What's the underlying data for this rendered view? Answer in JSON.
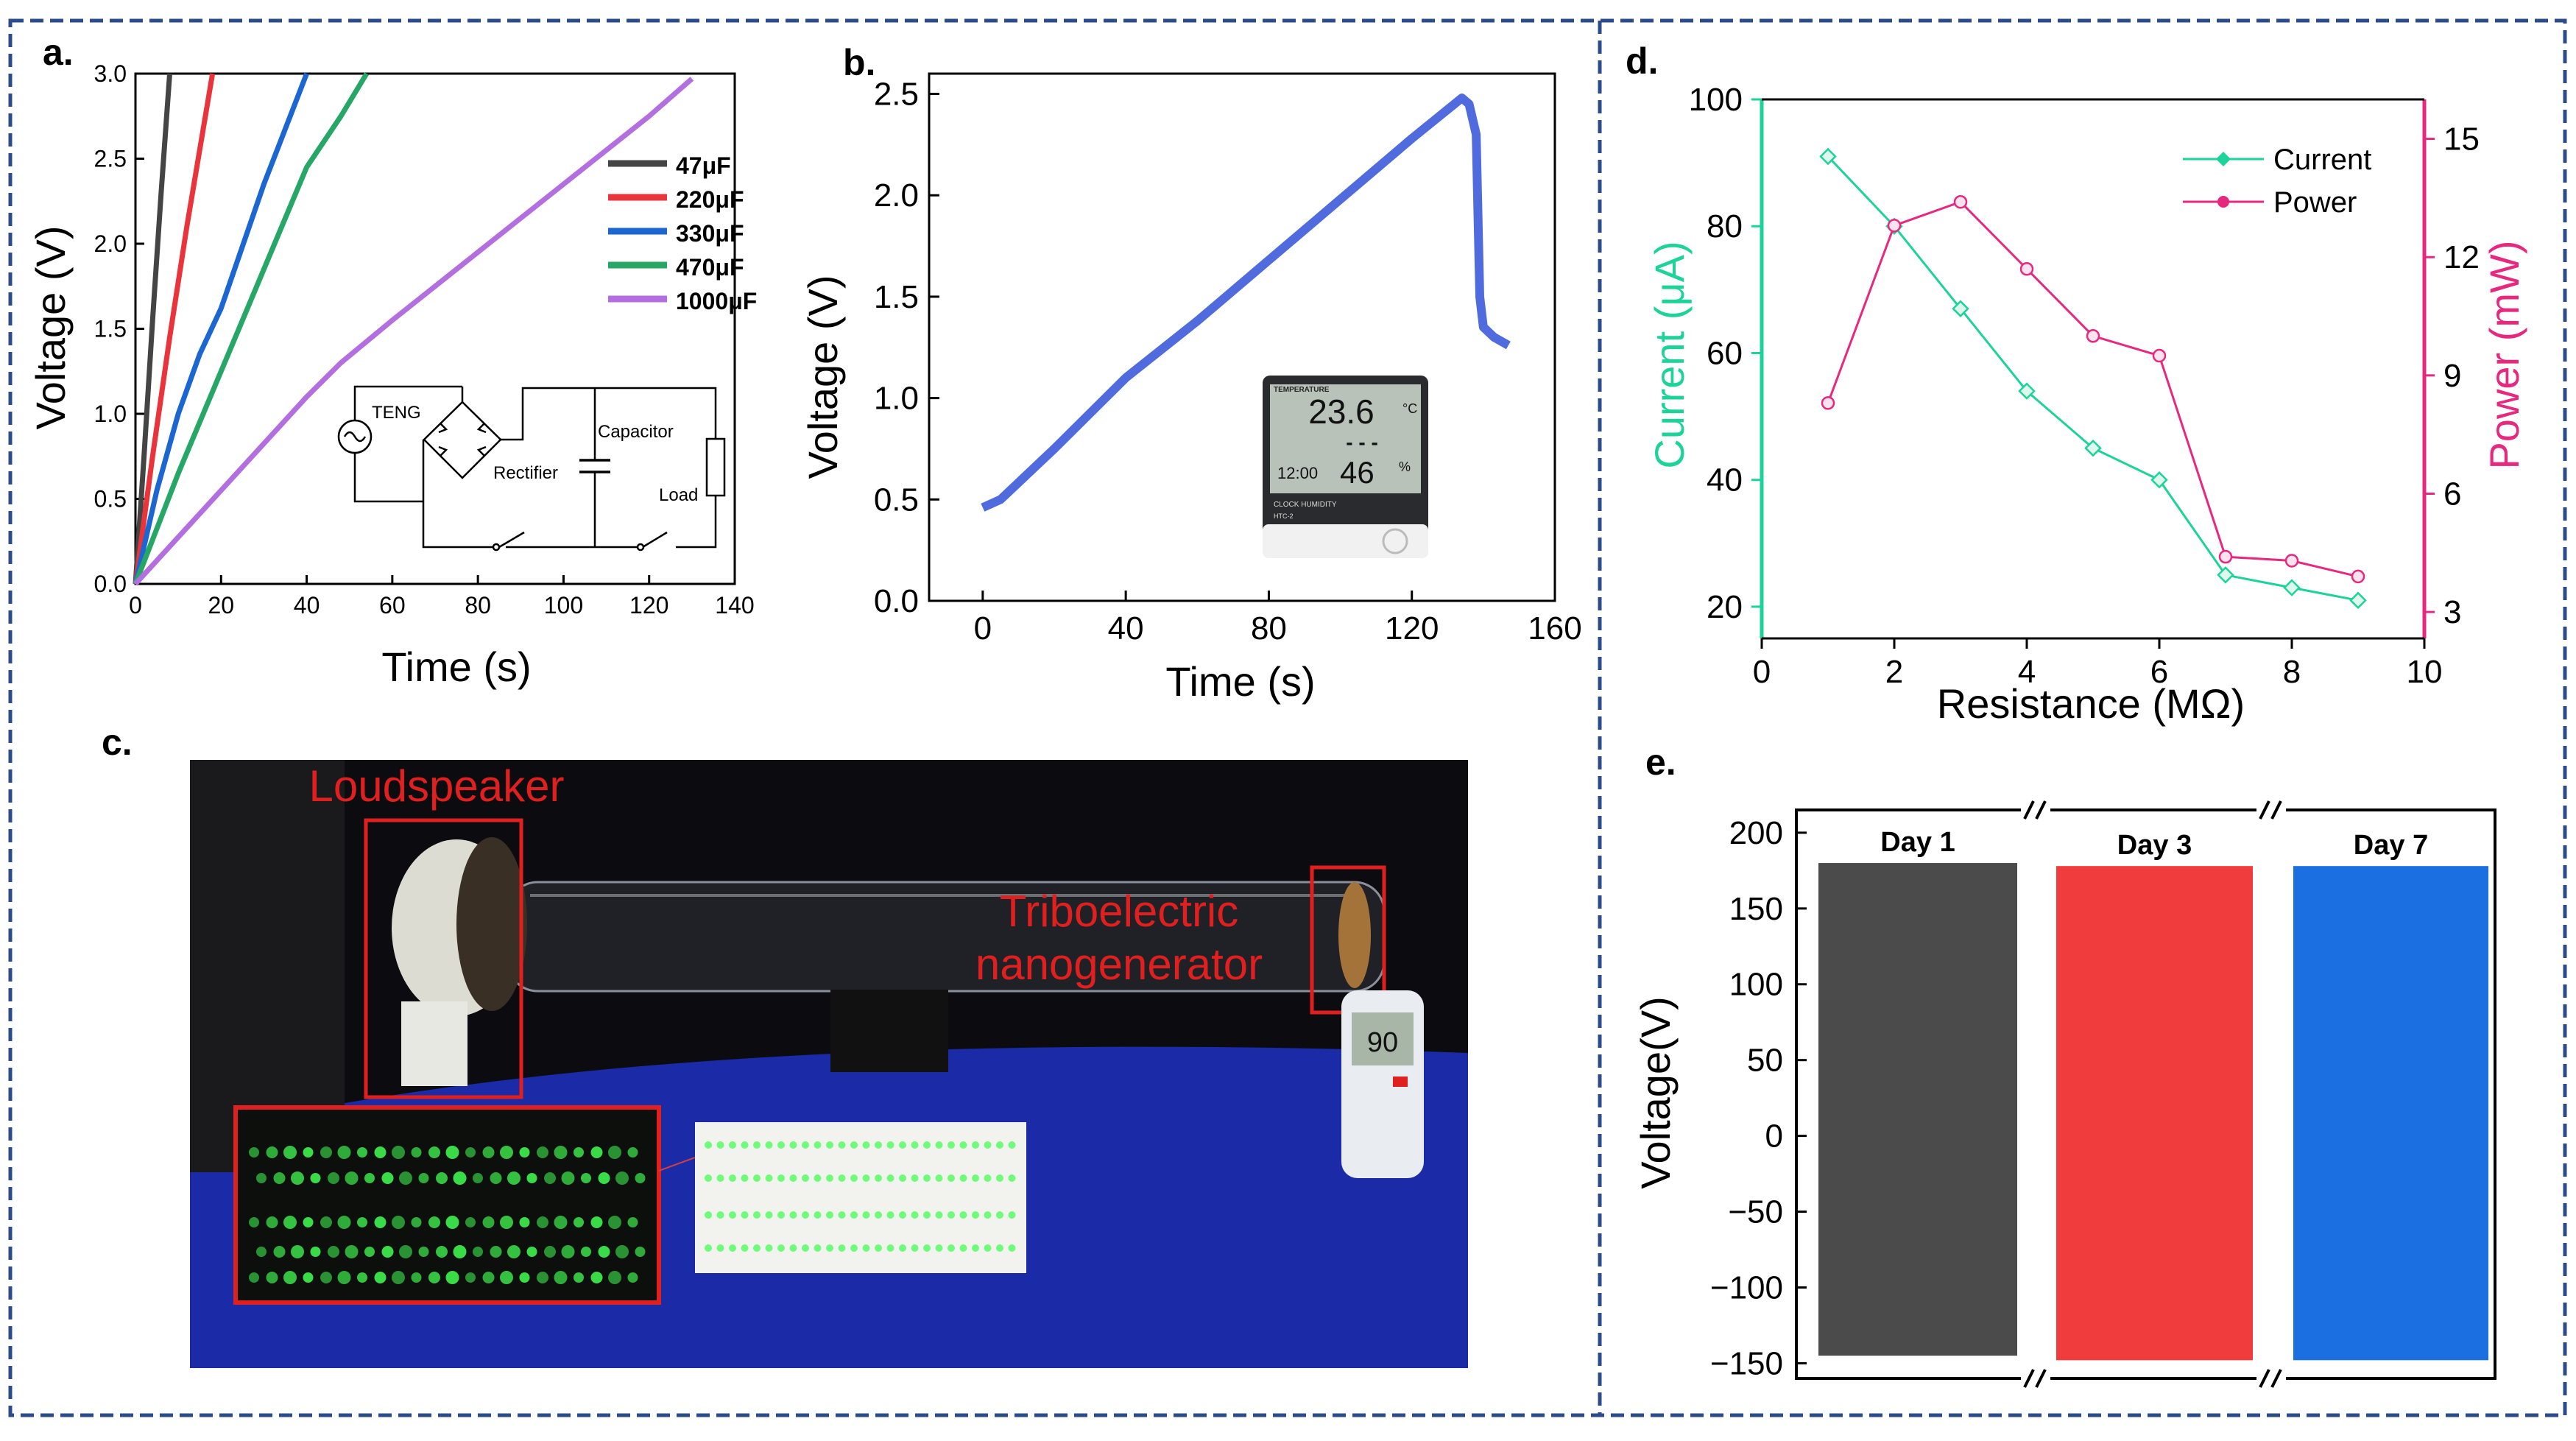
{
  "panels": {
    "a": {
      "label": "a.",
      "chart_data": {
        "type": "line",
        "xlabel": "Time (s)",
        "ylabel": "Voltage (V)",
        "xlim": [
          0,
          140
        ],
        "ylim": [
          0,
          3.0
        ],
        "xticks": [
          "0",
          "20",
          "40",
          "60",
          "80",
          "100",
          "120",
          "140"
        ],
        "yticks": [
          "0.0",
          "0.5",
          "1.0",
          "1.5",
          "2.0",
          "2.5",
          "3.0"
        ],
        "series": [
          {
            "name": "47μF",
            "color": "#444444",
            "x": [
              0,
              2,
              4,
              6,
              8
            ],
            "y": [
              0,
              0.75,
              1.55,
              2.3,
              3.0
            ]
          },
          {
            "name": "220μF",
            "color": "#e8343a",
            "x": [
              0,
              4,
              8,
              12,
              18
            ],
            "y": [
              0,
              0.75,
              1.45,
              2.1,
              3.0
            ]
          },
          {
            "name": "330μF",
            "color": "#1b66d1",
            "x": [
              0,
              5,
              10,
              15,
              20,
              30,
              40
            ],
            "y": [
              0,
              0.55,
              1.0,
              1.35,
              1.62,
              2.35,
              3.0
            ]
          },
          {
            "name": "470μF",
            "color": "#26a766",
            "x": [
              0,
              10,
              20,
              30,
              40,
              48,
              54
            ],
            "y": [
              0,
              0.65,
              1.25,
              1.85,
              2.45,
              2.75,
              3.0
            ]
          },
          {
            "name": "1000μF",
            "color": "#b36ee0",
            "x": [
              0,
              20,
              40,
              48,
              60,
              80,
              100,
              120,
              130
            ],
            "y": [
              0,
              0.55,
              1.1,
              1.3,
              1.55,
              1.95,
              2.35,
              2.75,
              2.97
            ]
          }
        ]
      },
      "circuit": {
        "teng": "TENG",
        "rectifier": "Rectifier",
        "capacitor": "Capacitor",
        "load": "Load"
      }
    },
    "b": {
      "label": "b.",
      "chart_data": {
        "type": "line",
        "xlabel": "Time (s)",
        "ylabel": "Voltage (V)",
        "xlim": [
          -15,
          160
        ],
        "ylim": [
          0,
          2.6
        ],
        "xticks": [
          "0",
          "40",
          "80",
          "120",
          "160"
        ],
        "yticks": [
          "0.0",
          "0.5",
          "1.0",
          "1.5",
          "2.0",
          "2.5"
        ],
        "series": [
          {
            "name": "Voltage",
            "color": "#3d5bd9",
            "x": [
              0,
              5,
              20,
              40,
              60,
              80,
              100,
              120,
              134,
              136,
              138,
              139,
              140,
              143,
              147
            ],
            "y": [
              0.46,
              0.5,
              0.75,
              1.1,
              1.38,
              1.68,
              1.98,
              2.28,
              2.48,
              2.45,
              2.3,
              1.5,
              1.35,
              1.3,
              1.26
            ]
          }
        ]
      },
      "thermometer": {
        "header": "TEMPERATURE",
        "temp": "23.6",
        "unit": "°C",
        "dashes": "- - -",
        "time": "12:00",
        "humidity": "46",
        "pct": "%",
        "footer": "CLOCK  HUMIDITY",
        "model": "HTC-2"
      }
    },
    "c": {
      "label": "c.",
      "loudspeaker": "Loudspeaker",
      "teng_line1": "Triboelectric",
      "teng_line2": "nanogenerator",
      "meter_reading": "90",
      "colors": {
        "box": "#e01f1f",
        "backdrop": "#0c0c10",
        "cloth": "#1b2aa6",
        "led": "#42ff52"
      }
    },
    "d": {
      "label": "d.",
      "chart_data": {
        "type": "line",
        "xlabel": "Resistance (MΩ)",
        "ylabel_left": "Current (μA)",
        "ylabel_right": "Power (mW)",
        "xlim": [
          0,
          10
        ],
        "ylim_left": [
          15,
          100
        ],
        "ylim_right": [
          2.33,
          16
        ],
        "xticks": [
          "0",
          "2",
          "4",
          "6",
          "8",
          "10"
        ],
        "yticks_left": [
          "20",
          "40",
          "60",
          "80",
          "100"
        ],
        "yticks_right": [
          "3",
          "6",
          "9",
          "12",
          "15"
        ],
        "series": [
          {
            "name": "Current",
            "axis": "left",
            "color": "#1ed39a",
            "x": [
              1,
              2,
              3,
              4,
              5,
              6,
              7,
              8,
              9
            ],
            "y": [
              91,
              80,
              67,
              54,
              45,
              40,
              25,
              23,
              21
            ]
          },
          {
            "name": "Power",
            "axis": "right",
            "color": "#e6287f",
            "x": [
              1,
              2,
              3,
              4,
              5,
              6,
              7,
              8,
              9
            ],
            "y": [
              8.3,
              12.8,
              13.4,
              11.7,
              10.0,
              9.5,
              4.4,
              4.3,
              3.9
            ]
          }
        ]
      }
    },
    "e": {
      "label": "e.",
      "chart_data": {
        "type": "area",
        "ylabel": "Voltage(V)",
        "ylim": [
          -160,
          215
        ],
        "yticks": [
          "200",
          "150",
          "100",
          "50",
          "0",
          "−50",
          "−100",
          "−150"
        ],
        "series": [
          {
            "name": "Day 1",
            "color": "#4b4b4b",
            "max": 180,
            "min": -145
          },
          {
            "name": "Day 3",
            "color": "#f03c3c",
            "max": 178,
            "min": -148
          },
          {
            "name": "Day 7",
            "color": "#1b6fe0",
            "max": 178,
            "min": -148
          }
        ]
      }
    }
  }
}
